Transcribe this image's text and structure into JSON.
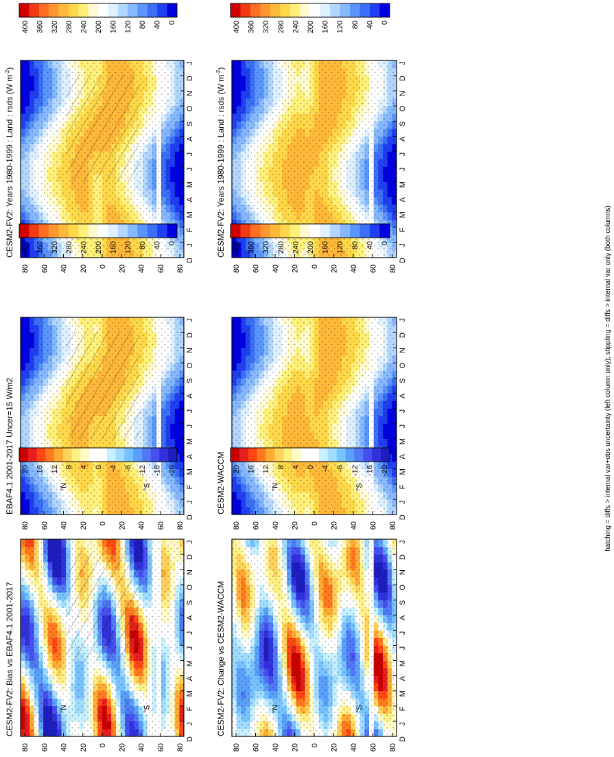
{
  "footnote": "hatching = diffs > internal var+obs uncertainty (left column only); stippling = diffs > internal var only (both columns)",
  "colors": {
    "abs": [
      "#0000e0",
      "#1f3ff0",
      "#3c6ff8",
      "#5b95fb",
      "#86b8fd",
      "#b2d6fe",
      "#dff0ff",
      "#ffffff",
      "#fffad0",
      "#fff07a",
      "#ffd84a",
      "#ffb93a",
      "#ff962e",
      "#ff6e22",
      "#f03a14",
      "#d00000"
    ],
    "diff": [
      "#1e1ebe",
      "#3232dc",
      "#4650f0",
      "#4f79f5",
      "#5aa0fa",
      "#78c3ff",
      "#a0dcff",
      "#c8f0ff",
      "#ffffff",
      "#ffffff",
      "#fffac8",
      "#fff086",
      "#ffd25a",
      "#ffaa32",
      "#ff7a1e",
      "#ff4614",
      "#e61e1e",
      "#c80000"
    ]
  },
  "chart_data": [
    {
      "id": "model-a",
      "kind": "abs",
      "title": "CESM2-FV2: Years 1980-1999 : Land : rsds (W m",
      "title_sup": "-2",
      "title_end": ")",
      "type": "heatmap",
      "x_ticks": [
        "D",
        "J",
        "F",
        "M",
        "A",
        "M",
        "J",
        "J",
        "A",
        "S",
        "O",
        "N",
        "D",
        "J"
      ],
      "y_ticks": [
        "80",
        "60",
        "40",
        "20",
        "0",
        "20",
        "40",
        "60",
        "80"
      ],
      "y_labels": [
        "°N",
        "°S"
      ],
      "cbar_ticks": [
        "400",
        "360",
        "320",
        "280",
        "240",
        "200",
        "160",
        "120",
        "80",
        "40",
        "0"
      ],
      "zlim": [
        0,
        420
      ],
      "hatch": true
    },
    {
      "id": "obs",
      "kind": "abs",
      "title": "EBAF4.1 2001-2017 Uncer=15 W/m2",
      "type": "heatmap",
      "x_ticks": [
        "D",
        "J",
        "F",
        "M",
        "A",
        "M",
        "J",
        "J",
        "A",
        "S",
        "O",
        "N",
        "D",
        "J"
      ],
      "y_ticks": [
        "80",
        "60",
        "40",
        "20",
        "0",
        "20",
        "40",
        "60",
        "80"
      ],
      "y_labels": [
        "°N",
        "°S"
      ],
      "cbar_ticks": [
        "400",
        "360",
        "320",
        "280",
        "240",
        "200",
        "160",
        "120",
        "80",
        "40",
        "0"
      ],
      "zlim": [
        0,
        420
      ],
      "hatch": true
    },
    {
      "id": "bias",
      "kind": "diff",
      "title": "CESM2-FV2: Bias vs EBAF4.1 2001-2017",
      "type": "heatmap",
      "x_ticks": [
        "D",
        "J",
        "F",
        "M",
        "A",
        "M",
        "J",
        "J",
        "A",
        "S",
        "O",
        "N",
        "D",
        "J"
      ],
      "y_ticks": [
        "80",
        "60",
        "40",
        "20",
        "0",
        "20",
        "40",
        "60",
        "80"
      ],
      "y_labels": [
        "°N",
        "°S"
      ],
      "cbar_ticks": [
        "20",
        "16",
        "12",
        "8",
        "4",
        "0",
        "-4",
        "-8",
        "-12",
        "-16",
        "-20"
      ],
      "zlim": [
        -22,
        22
      ],
      "hatch": true
    },
    {
      "id": "model-a-right",
      "kind": "abs",
      "title": "CESM2-FV2: Years 1980-1999 : Land : rsds (W m",
      "title_sup": "-2",
      "title_end": ")",
      "type": "heatmap",
      "x_ticks": [
        "D",
        "J",
        "F",
        "M",
        "A",
        "M",
        "J",
        "J",
        "A",
        "S",
        "O",
        "N",
        "D",
        "J"
      ],
      "y_ticks": [
        "80",
        "60",
        "40",
        "20",
        "0",
        "20",
        "40",
        "60",
        "80"
      ],
      "y_labels": [
        "°N",
        "°S"
      ],
      "cbar_ticks": [
        "400",
        "360",
        "320",
        "280",
        "240",
        "200",
        "160",
        "120",
        "80",
        "40",
        "0"
      ],
      "zlim": [
        0,
        420
      ],
      "hatch": false
    },
    {
      "id": "model-b",
      "kind": "abs",
      "title": "CESM2-WACCM",
      "type": "heatmap",
      "x_ticks": [
        "D",
        "J",
        "F",
        "M",
        "A",
        "M",
        "J",
        "J",
        "A",
        "S",
        "O",
        "N",
        "D",
        "J"
      ],
      "y_ticks": [
        "80",
        "60",
        "40",
        "20",
        "0",
        "20",
        "40",
        "60",
        "80"
      ],
      "y_labels": [
        "°N",
        "°S"
      ],
      "cbar_ticks": [
        "400",
        "360",
        "320",
        "280",
        "240",
        "200",
        "160",
        "120",
        "80",
        "40",
        "0"
      ],
      "zlim": [
        0,
        420
      ],
      "hatch": false
    },
    {
      "id": "change",
      "kind": "diff",
      "title": "CESM2-FV2: Change vs CESM2-WACCM",
      "type": "heatmap",
      "x_ticks": [
        "D",
        "J",
        "F",
        "M",
        "A",
        "M",
        "J",
        "J",
        "A",
        "S",
        "O",
        "N",
        "D",
        "J"
      ],
      "y_ticks": [
        "80",
        "60",
        "40",
        "20",
        "0",
        "20",
        "40",
        "60",
        "80"
      ],
      "y_labels": [
        "°N",
        "°S"
      ],
      "cbar_ticks": [
        "20",
        "16",
        "12",
        "8",
        "4",
        "0",
        "-4",
        "-8",
        "-12",
        "-16",
        "-20"
      ],
      "zlim": [
        -22,
        22
      ],
      "hatch": false
    }
  ]
}
